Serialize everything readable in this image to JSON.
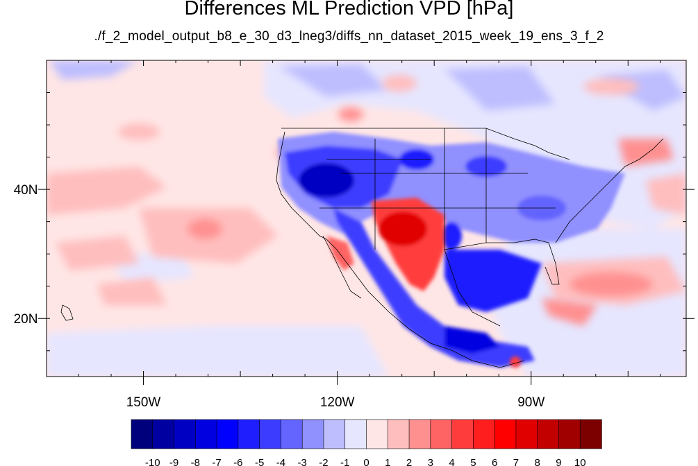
{
  "title": "Differences ML Prediction VPD [hPa]",
  "subtitle": "./f_2_model_output_b8_e_30_d3_lneg3/diffs_nn_dataset_2015_week_19_ens_3_f_2",
  "map": {
    "lon_range": [
      -165,
      -66
    ],
    "lat_range": [
      11,
      60
    ],
    "lon_ticks": [
      {
        "value": -150,
        "label": "150W"
      },
      {
        "value": -120,
        "label": "120W"
      },
      {
        "value": -90,
        "label": "90W"
      }
    ],
    "lat_ticks": [
      {
        "value": 40,
        "label": "40N"
      },
      {
        "value": 20,
        "label": "20N"
      }
    ]
  },
  "colorbar": {
    "labels": [
      "-10",
      "-9",
      "-8",
      "-7",
      "-6",
      "-5",
      "-4",
      "-3",
      "-2",
      "-1",
      "0",
      "1",
      "2",
      "3",
      "4",
      "5",
      "6",
      "7",
      "8",
      "9",
      "10"
    ],
    "colors": [
      "#00007d",
      "#0000a0",
      "#0000c3",
      "#0000e1",
      "#0000ff",
      "#1e1eff",
      "#3c3cff",
      "#6464ff",
      "#9090ff",
      "#bebeff",
      "#e6e6ff",
      "#ffe6e6",
      "#ffbebe",
      "#ff9090",
      "#ff6464",
      "#ff3c3c",
      "#ff1e1e",
      "#ff0000",
      "#e10000",
      "#c30000",
      "#a00000",
      "#7d0000"
    ]
  }
}
